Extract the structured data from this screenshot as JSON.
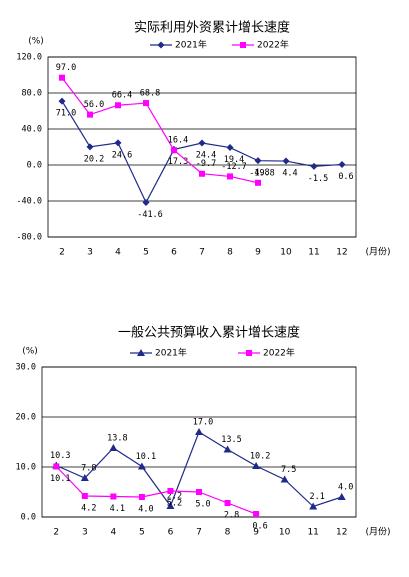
{
  "chart_data": [
    {
      "type": "line",
      "title": "实际利用外资累计增长速度",
      "y_label": "(%)",
      "x_label": "(月份)",
      "categories": [
        "2",
        "3",
        "4",
        "5",
        "6",
        "7",
        "8",
        "9",
        "10",
        "11",
        "12"
      ],
      "series": [
        {
          "name": "2021年",
          "color": "#1f2a8a",
          "marker": "diamond",
          "values": [
            71.0,
            20.2,
            24.6,
            -41.6,
            17.3,
            24.4,
            19.4,
            4.8,
            4.4,
            -1.5,
            0.6
          ],
          "value_labels": [
            "71.0",
            "20.2",
            "24.6",
            "-41.6",
            "17.3",
            "24.4",
            "19.4",
            "4.8",
            "4.4",
            "-1.5",
            "0.6"
          ]
        },
        {
          "name": "2022年",
          "color": "#ff00ff",
          "marker": "square",
          "values": [
            97.0,
            56.0,
            66.4,
            68.8,
            16.4,
            -9.7,
            -12.7,
            -19.8,
            null,
            null,
            null
          ],
          "value_labels": [
            "97.0",
            "56.0",
            "66.4",
            "68.8",
            "16.4",
            "-9.7",
            "-12.7",
            "-19.8",
            null,
            null,
            null
          ]
        }
      ],
      "ylim": [
        -80,
        120
      ],
      "yticks": [
        {
          "value": -80,
          "label": "-80.0"
        },
        {
          "value": -40,
          "label": "-40.0"
        },
        {
          "value": 0,
          "label": "0.0"
        },
        {
          "value": 40,
          "label": "40.0"
        },
        {
          "value": 80,
          "label": "80.0"
        },
        {
          "value": 120,
          "label": "120.0"
        }
      ],
      "grid": true
    },
    {
      "type": "line",
      "title": "一般公共预算收入累计增长速度",
      "y_label": "(%)",
      "x_label": "(月份)",
      "categories": [
        "2",
        "3",
        "4",
        "5",
        "6",
        "7",
        "8",
        "9",
        "10",
        "11",
        "12"
      ],
      "series": [
        {
          "name": "2021年",
          "color": "#1f2a8a",
          "marker": "triangle",
          "values": [
            10.3,
            7.8,
            13.8,
            10.1,
            2.2,
            17.0,
            13.5,
            10.2,
            7.5,
            2.1,
            4.0
          ],
          "value_labels": [
            "10.3",
            "7.8",
            "13.8",
            "10.1",
            "2.2",
            "17.0",
            "13.5",
            "10.2",
            "7.5",
            "2.1",
            "4.0"
          ]
        },
        {
          "name": "2022年",
          "color": "#ff00ff",
          "marker": "square",
          "values": [
            10.1,
            4.2,
            4.1,
            4.0,
            5.2,
            5.0,
            2.8,
            0.6,
            null,
            null,
            null
          ],
          "value_labels": [
            "10.1",
            "4.2",
            "4.1",
            "4.0",
            "5.2",
            "5.0",
            "2.8",
            "0.6",
            null,
            null,
            null
          ]
        }
      ],
      "ylim": [
        0,
        30
      ],
      "yticks": [
        {
          "value": 0,
          "label": "0.0"
        },
        {
          "value": 10,
          "label": "10.0"
        },
        {
          "value": 20,
          "label": "20.0"
        },
        {
          "value": 30,
          "label": "30.0"
        }
      ],
      "grid": true
    }
  ]
}
